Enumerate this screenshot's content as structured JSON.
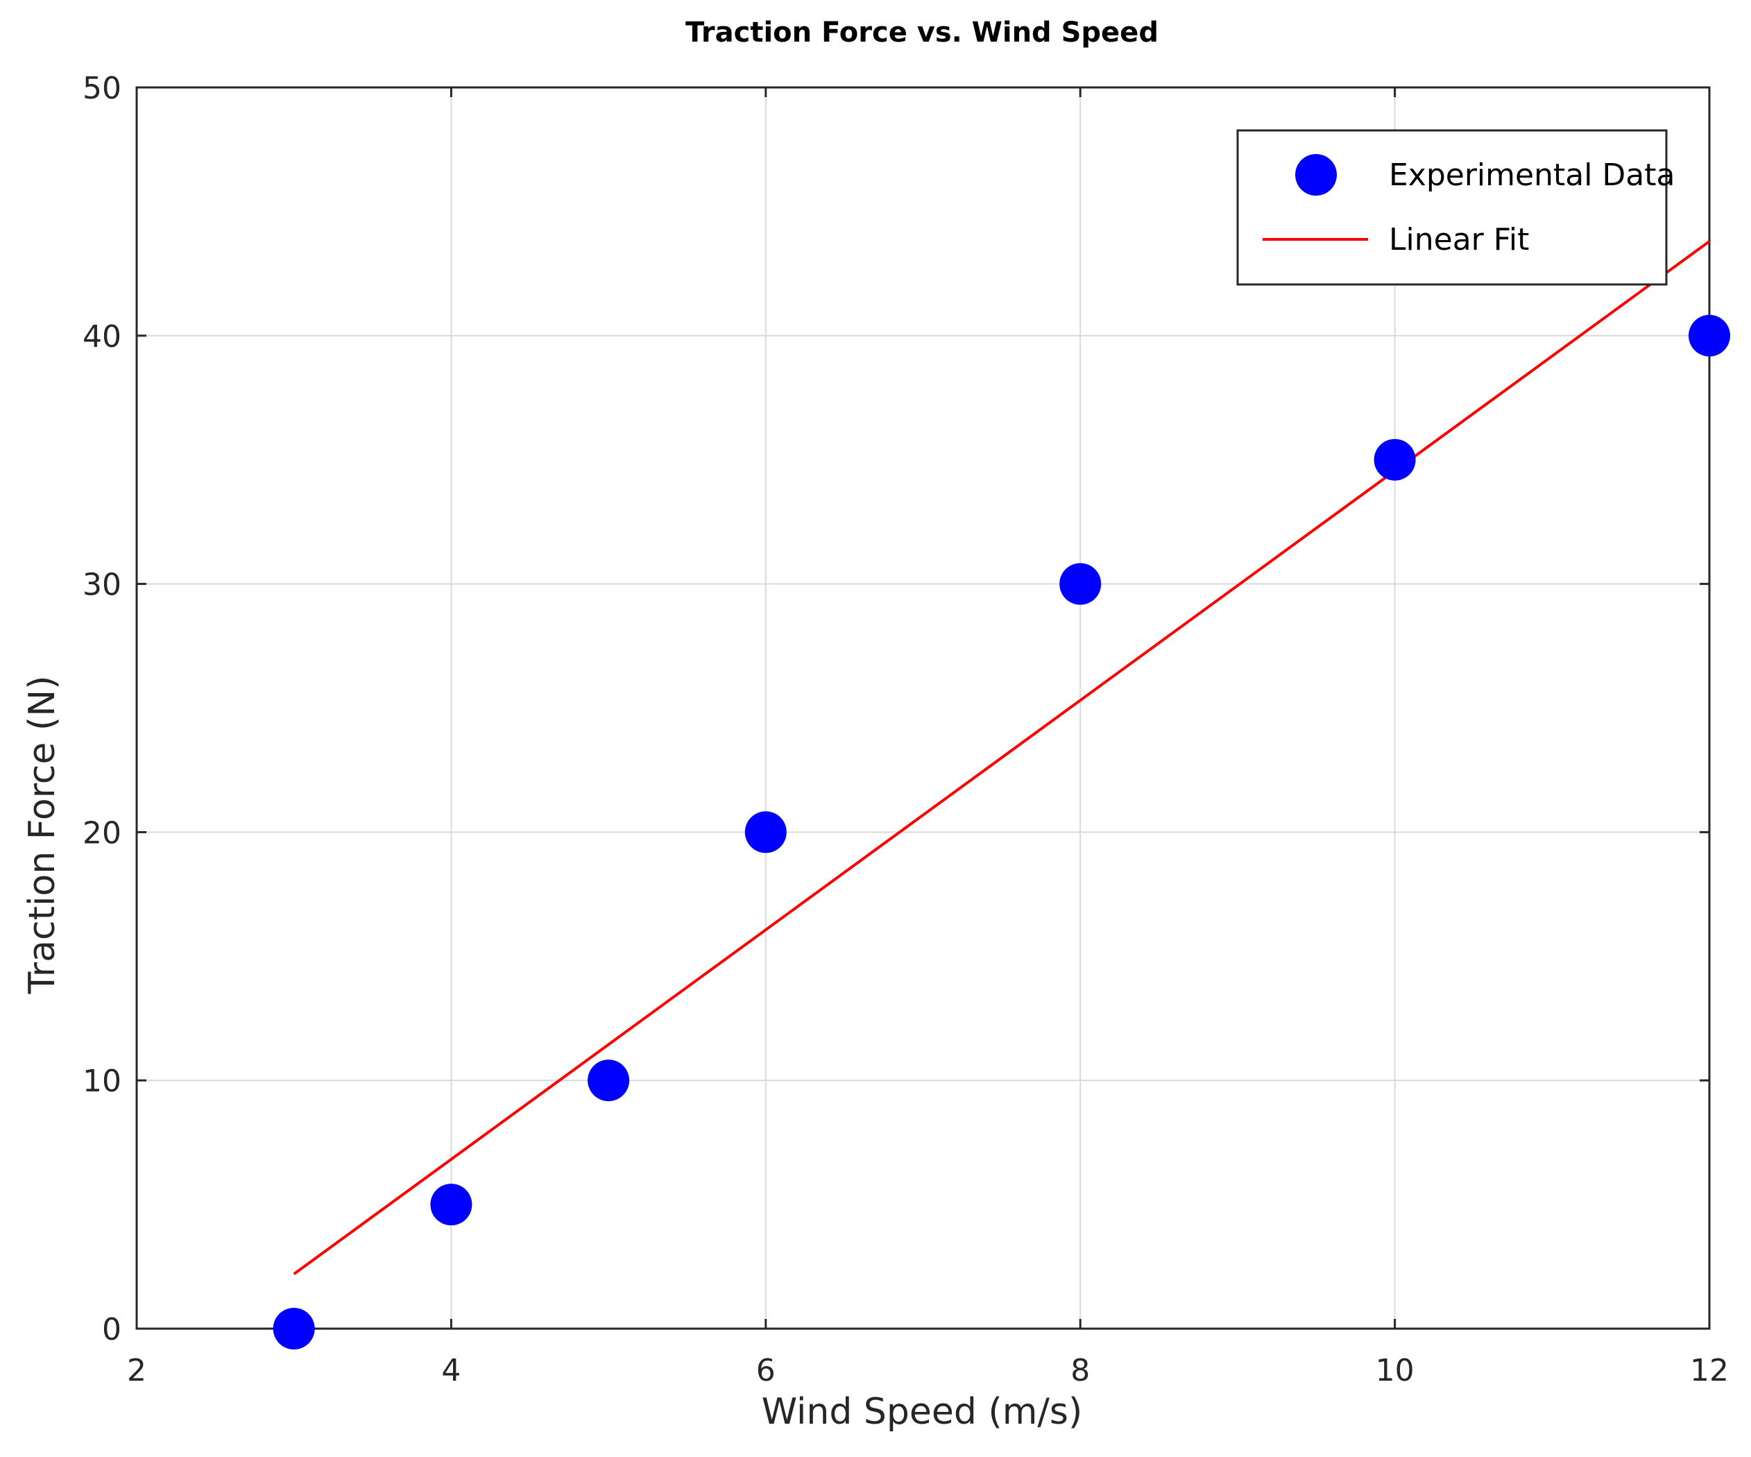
{
  "chart_data": {
    "type": "scatter",
    "title": "Traction Force vs. Wind Speed",
    "xlabel": "Wind Speed (m/s)",
    "ylabel": "Traction Force (N)",
    "xlim": [
      2,
      12
    ],
    "ylim": [
      0,
      50
    ],
    "xticks": [
      2,
      4,
      6,
      8,
      10,
      12
    ],
    "yticks": [
      0,
      10,
      20,
      30,
      40,
      50
    ],
    "xtick_labels": [
      "2",
      "4",
      "6",
      "8",
      "10",
      "12"
    ],
    "ytick_labels": [
      "0",
      "10",
      "20",
      "30",
      "40",
      "50"
    ],
    "grid": true,
    "legend_position": "top-right",
    "series": [
      {
        "name": "Experimental Data",
        "kind": "markers",
        "color": "#0000ff",
        "x": [
          3,
          4,
          5,
          6,
          8,
          10,
          12
        ],
        "y": [
          0,
          5,
          10,
          20,
          30,
          35,
          40
        ]
      },
      {
        "name": "Linear Fit",
        "kind": "line",
        "color": "#ff0000",
        "x": [
          3,
          12
        ],
        "y": [
          2.2,
          43.8
        ]
      }
    ]
  }
}
